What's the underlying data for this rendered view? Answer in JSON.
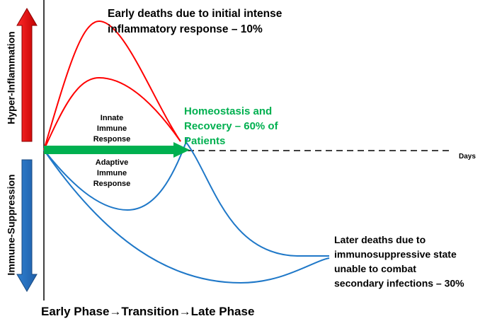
{
  "axis_labels": {
    "top": "Hyper-Inflammation",
    "bottom": "Immune-Suppression",
    "time": "Days"
  },
  "phases": "Early Phase→Transition→Late Phase",
  "annotations": {
    "early_deaths": [
      "Early deaths due to initial intense",
      "inflammatory response – 10%"
    ],
    "homeostasis": [
      "Homeostasis and",
      "Recovery – 60% of",
      "Patients"
    ],
    "innate": [
      "Innate",
      "Immune",
      "Response"
    ],
    "adaptive": [
      "Adaptive",
      "Immune",
      "Response"
    ],
    "later_deaths": [
      "Later deaths due to",
      "immunosuppressive state",
      "unable to combat",
      "secondary infections – 30%"
    ]
  }
}
